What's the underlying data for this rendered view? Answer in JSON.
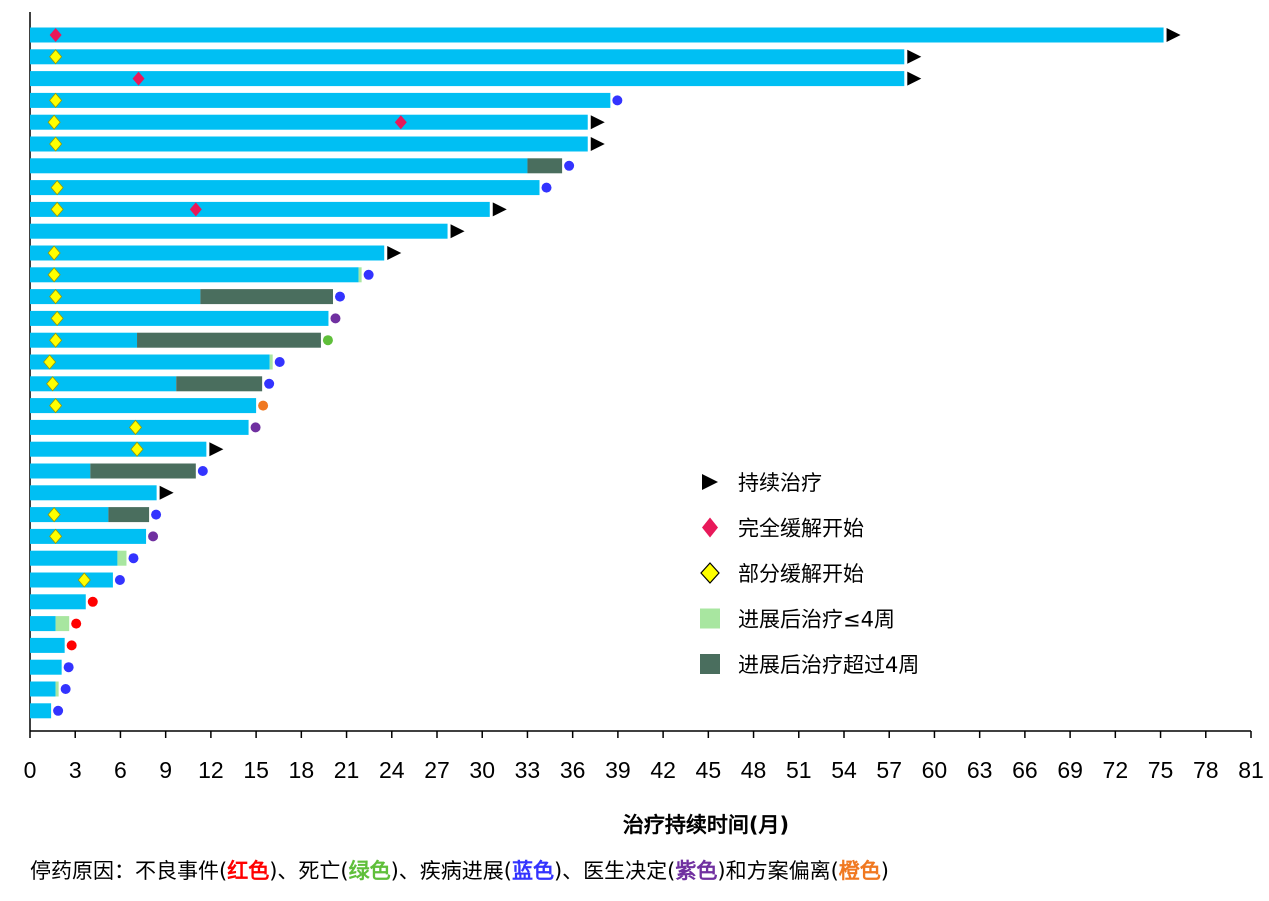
{
  "chart_data": {
    "type": "bar",
    "orientation": "horizontal",
    "xlabel": "治疗持续时间(月)",
    "xlim": [
      0,
      81
    ],
    "xticks": [
      0,
      3,
      6,
      9,
      12,
      15,
      18,
      21,
      24,
      27,
      30,
      33,
      36,
      39,
      42,
      45,
      48,
      51,
      54,
      57,
      60,
      63,
      66,
      69,
      72,
      75,
      78,
      81
    ],
    "colors": {
      "treatment": "#00BFF3",
      "post_progression_short": "#A8E6A0",
      "post_progression_long": "#4A6E5E",
      "ongoing": "#000000",
      "cr": "#E8195A",
      "pr": "#FFFF00",
      "stop_ae": "#FF0000",
      "stop_death": "#5FBF3A",
      "stop_pd": "#3333FF",
      "stop_physician": "#7030A0",
      "stop_deviation": "#F07820"
    },
    "patients": [
      {
        "treat": 75.2,
        "post_short": 0,
        "post_long": 0,
        "end": "ongoing",
        "cr": 1.7,
        "pr": null
      },
      {
        "treat": 58,
        "post_short": 0,
        "post_long": 0,
        "end": "ongoing",
        "cr": null,
        "pr": 1.7
      },
      {
        "treat": 58,
        "post_short": 0,
        "post_long": 0,
        "end": "ongoing",
        "cr": 7.2,
        "pr": null
      },
      {
        "treat": 38.5,
        "post_short": 0,
        "post_long": 0,
        "end": "pd",
        "cr": null,
        "pr": 1.7
      },
      {
        "treat": 37,
        "post_short": 0,
        "post_long": 0,
        "end": "ongoing",
        "cr": 24.6,
        "pr": 1.6
      },
      {
        "treat": 37,
        "post_short": 0,
        "post_long": 0,
        "end": "ongoing",
        "cr": null,
        "pr": 1.7
      },
      {
        "treat": 33,
        "post_short": 0,
        "post_long": 2.3,
        "end": "pd",
        "cr": null,
        "pr": null
      },
      {
        "treat": 33.8,
        "post_short": 0,
        "post_long": 0,
        "end": "pd",
        "cr": null,
        "pr": 1.8
      },
      {
        "treat": 30.5,
        "post_short": 0,
        "post_long": 0,
        "end": "ongoing",
        "cr": 11,
        "pr": 1.8
      },
      {
        "treat": 27.7,
        "post_short": 0,
        "post_long": 0,
        "end": "ongoing",
        "cr": null,
        "pr": null
      },
      {
        "treat": 23.5,
        "post_short": 0,
        "post_long": 0,
        "end": "ongoing",
        "cr": null,
        "pr": 1.6
      },
      {
        "treat": 21.8,
        "post_short": 0.2,
        "post_long": 0,
        "end": "pd",
        "cr": null,
        "pr": 1.6
      },
      {
        "treat": 11.3,
        "post_short": 0,
        "post_long": 8.8,
        "end": "pd",
        "cr": null,
        "pr": 1.7
      },
      {
        "treat": 19.8,
        "post_short": 0,
        "post_long": 0,
        "end": "physician",
        "cr": null,
        "pr": 1.8
      },
      {
        "treat": 7.1,
        "post_short": 0,
        "post_long": 12.2,
        "end": "death",
        "cr": null,
        "pr": 1.7
      },
      {
        "treat": 15.9,
        "post_short": 0.2,
        "post_long": 0,
        "end": "pd",
        "cr": null,
        "pr": 1.3
      },
      {
        "treat": 9.7,
        "post_short": 0,
        "post_long": 5.7,
        "end": "pd",
        "cr": null,
        "pr": 1.5
      },
      {
        "treat": 15,
        "post_short": 0,
        "post_long": 0,
        "end": "deviation",
        "cr": null,
        "pr": 1.7
      },
      {
        "treat": 14.5,
        "post_short": 0,
        "post_long": 0,
        "end": "physician",
        "cr": null,
        "pr": 7
      },
      {
        "treat": 11.7,
        "post_short": 0,
        "post_long": 0,
        "end": "ongoing",
        "cr": null,
        "pr": 7.1
      },
      {
        "treat": 4,
        "post_short": 0,
        "post_long": 7,
        "end": "pd",
        "cr": null,
        "pr": null
      },
      {
        "treat": 8.4,
        "post_short": 0,
        "post_long": 0,
        "end": "ongoing",
        "cr": null,
        "pr": null
      },
      {
        "treat": 5.2,
        "post_short": 0,
        "post_long": 2.7,
        "end": "pd",
        "cr": null,
        "pr": 1.6
      },
      {
        "treat": 7.7,
        "post_short": 0,
        "post_long": 0,
        "end": "physician",
        "cr": null,
        "pr": 1.7
      },
      {
        "treat": 5.8,
        "post_short": 0.6,
        "post_long": 0,
        "end": "pd",
        "cr": null,
        "pr": null
      },
      {
        "treat": 5.5,
        "post_short": 0,
        "post_long": 0,
        "end": "pd",
        "cr": null,
        "pr": 3.6
      },
      {
        "treat": 3.7,
        "post_short": 0,
        "post_long": 0,
        "end": "ae",
        "cr": null,
        "pr": null
      },
      {
        "treat": 1.7,
        "post_short": 0.9,
        "post_long": 0,
        "end": "ae",
        "cr": null,
        "pr": null
      },
      {
        "treat": 2.3,
        "post_short": 0,
        "post_long": 0,
        "end": "ae",
        "cr": null,
        "pr": null
      },
      {
        "treat": 2.1,
        "post_short": 0,
        "post_long": 0,
        "end": "pd",
        "cr": null,
        "pr": null
      },
      {
        "treat": 1.7,
        "post_short": 0.2,
        "post_long": 0,
        "end": "pd",
        "cr": null,
        "pr": null
      },
      {
        "treat": 1.4,
        "post_short": 0,
        "post_long": 0,
        "end": "pd",
        "cr": null,
        "pr": null
      }
    ],
    "legend": [
      {
        "key": "ongoing",
        "label": "持续治疗"
      },
      {
        "key": "cr",
        "label": "完全缓解开始"
      },
      {
        "key": "pr",
        "label": "部分缓解开始"
      },
      {
        "key": "post_short",
        "label": "进展后治疗≤4周"
      },
      {
        "key": "post_long",
        "label": "进展后治疗超过4周"
      }
    ]
  },
  "footnote": {
    "prefix": "停药原因：不良事件(",
    "ae": "红色",
    "s1": ")、死亡(",
    "death": "绿色",
    "s2": ")、疾病进展(",
    "pd": "蓝色",
    "s3": ")、医生决定(",
    "physician": "紫色",
    "s4": ")和方案偏离(",
    "deviation": "橙色",
    "suffix": ")"
  }
}
